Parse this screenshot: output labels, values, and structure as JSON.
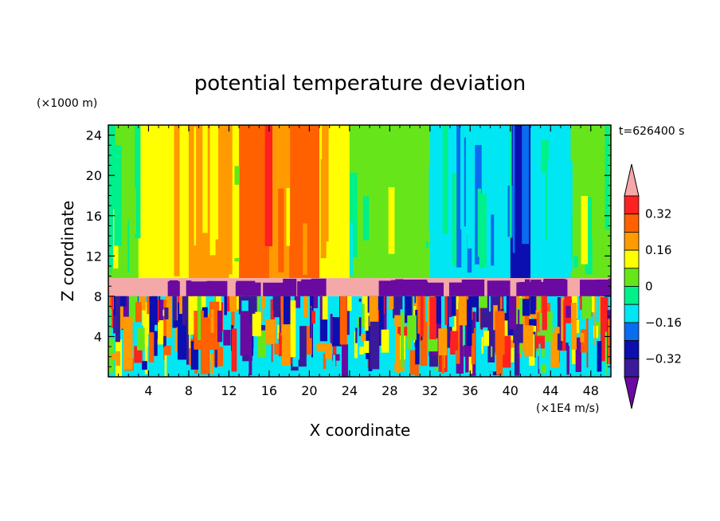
{
  "chart_data": {
    "type": "heatmap",
    "title": "potential temperature deviation",
    "xlabel": "X coordinate",
    "ylabel": "Z coordinate",
    "x_units": "(×1E4 m/s)",
    "y_units": "(×1000 m)",
    "time_label": "t=626400 s",
    "xlim": [
      0,
      50
    ],
    "ylim": [
      0,
      25
    ],
    "x_ticks": [
      4,
      8,
      12,
      16,
      20,
      24,
      28,
      32,
      36,
      40,
      44,
      48
    ],
    "y_ticks": [
      4,
      8,
      12,
      16,
      20,
      24
    ],
    "colorbar": {
      "levels": [
        -0.4,
        -0.32,
        -0.24,
        -0.16,
        -0.08,
        0,
        0.08,
        0.16,
        0.24,
        0.32,
        0.4
      ],
      "tick_labels": [
        "0.32",
        "0.16",
        "0",
        "−0.16",
        "−0.32"
      ],
      "tick_values": [
        0.32,
        0.16,
        0,
        -0.16,
        -0.32
      ],
      "colors_low_to_high": [
        "#5a0fa0",
        "#3a1a9a",
        "#0b0fb0",
        "#0a6cf0",
        "#00e6f2",
        "#00f08a",
        "#66e61a",
        "#ffff00",
        "#ff9a00",
        "#ff6000",
        "#ff2020",
        "#f4a8a8"
      ],
      "under_color": "#6a0aa0",
      "over_color": "#f4a8a8"
    },
    "field_description": {
      "upper_layer": [
        {
          "x": [
            0,
            3
          ],
          "theta": 0
        },
        {
          "x": [
            3,
            8
          ],
          "theta": 0.1
        },
        {
          "x": [
            8,
            12
          ],
          "theta": 0.2
        },
        {
          "x": [
            12,
            13
          ],
          "theta": 0.08
        },
        {
          "x": [
            13,
            16
          ],
          "theta": 0.3
        },
        {
          "x": [
            16,
            18
          ],
          "theta": 0.2
        },
        {
          "x": [
            18,
            21
          ],
          "theta": 0.25
        },
        {
          "x": [
            21,
            24
          ],
          "theta": 0.12
        },
        {
          "x": [
            24,
            32
          ],
          "theta": 0
        },
        {
          "x": [
            32,
            40
          ],
          "theta": -0.12
        },
        {
          "x": [
            40,
            42
          ],
          "theta": -0.3
        },
        {
          "x": [
            42,
            46
          ],
          "theta": -0.12
        },
        {
          "x": [
            46,
            50
          ],
          "theta": 0
        }
      ],
      "interface_layer": {
        "z": [
          8,
          9.8
        ],
        "theta": 0.4
      },
      "lower_layer": "mixed convective cells, theta -0.4 to 0.4"
    }
  }
}
